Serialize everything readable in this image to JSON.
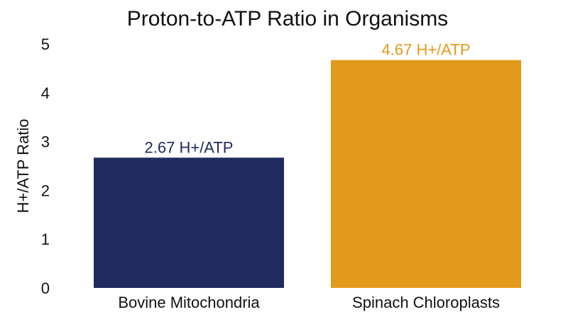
{
  "chart_data": {
    "type": "bar",
    "title": "Proton-to-ATP Ratio in Organisms",
    "xlabel": "",
    "ylabel": "H+/ATP Ratio",
    "categories": [
      "Bovine Mitochondria",
      "Spinach Chloroplasts"
    ],
    "values": [
      2.67,
      4.67
    ],
    "data_labels": [
      "2.67 H+/ATP",
      "4.67 H+/ATP"
    ],
    "bar_colors": [
      "#1f2a5e",
      "#e39a1c"
    ],
    "ylim": [
      0,
      5
    ],
    "yticks": [
      "0",
      "1",
      "2",
      "3",
      "4",
      "5"
    ],
    "grid": false,
    "legend": "none"
  }
}
